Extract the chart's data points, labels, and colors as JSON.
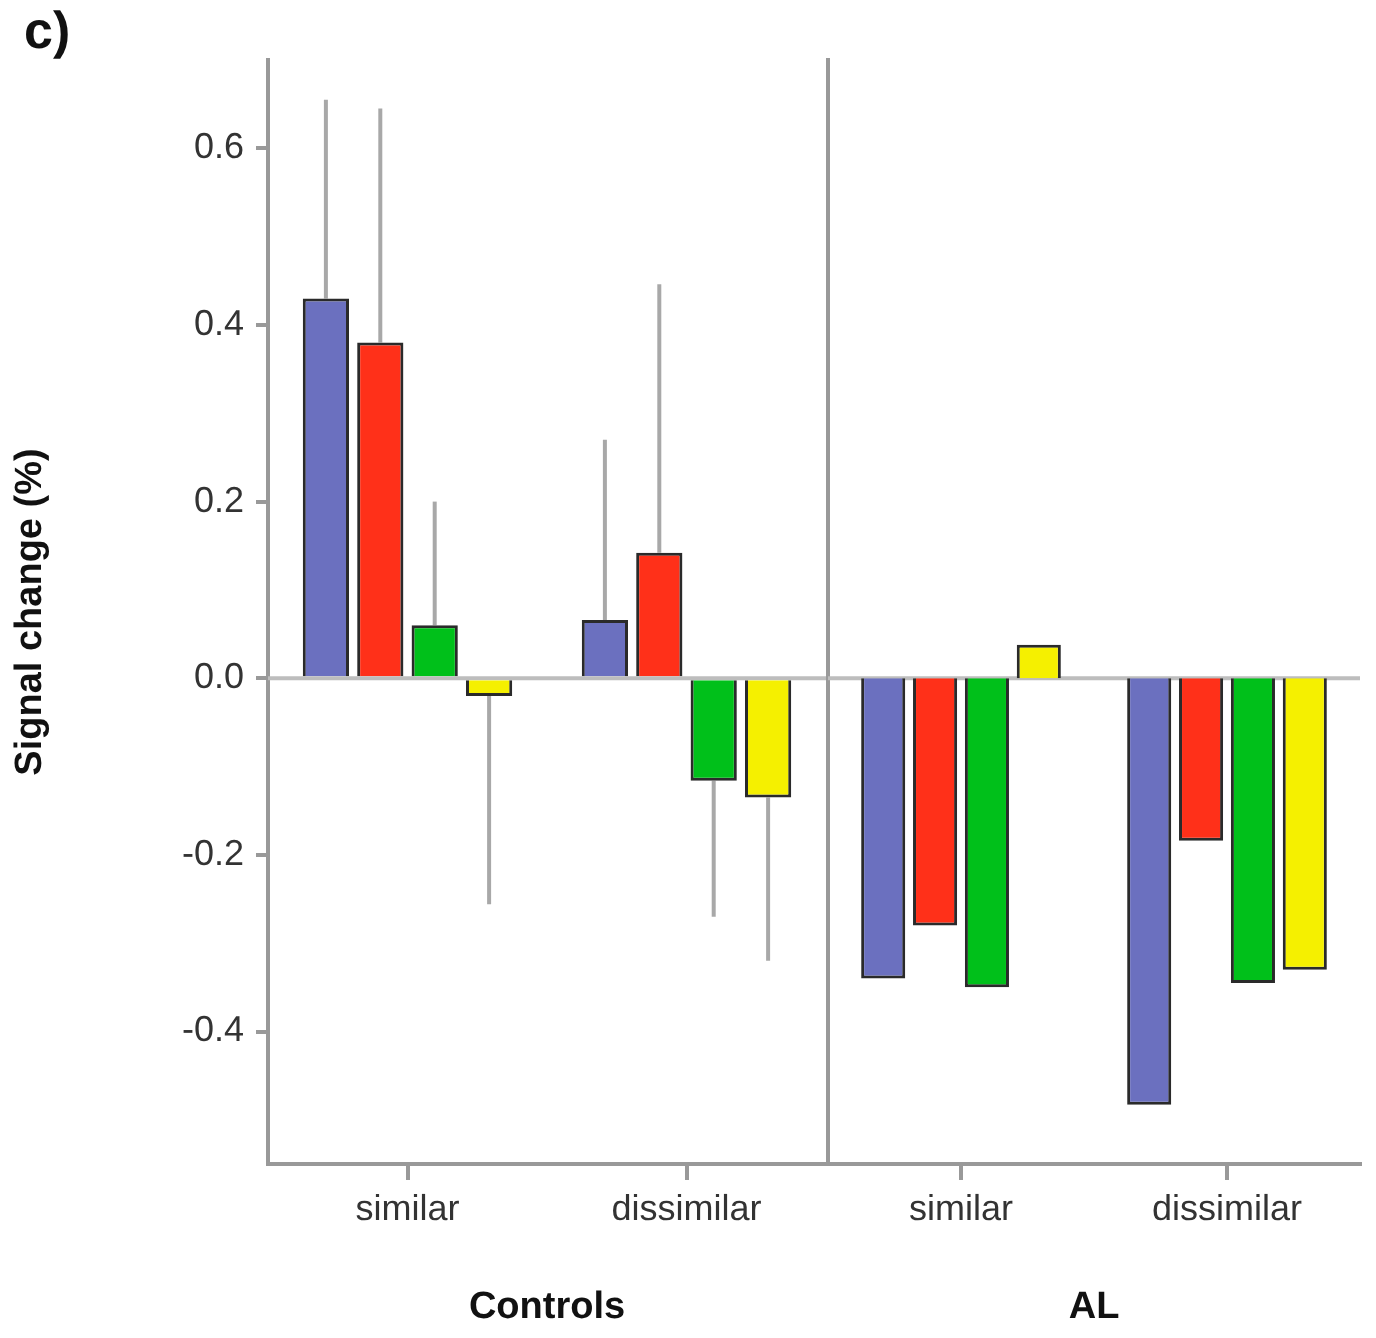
{
  "chart_data": [
    {
      "type": "bar",
      "title": "c)",
      "xlabel": "Controls",
      "ylabel": "Signal change (%)",
      "categories": [
        "similar",
        "dissimilar"
      ],
      "series": [
        {
          "color": "#6b70bf",
          "values": [
            0.43,
            0.066
          ],
          "errors": [
            [
              0.43,
              0.655
            ],
            [
              0.066,
              0.27
            ]
          ]
        },
        {
          "color": "#ff3019",
          "values": [
            0.38,
            0.142
          ],
          "errors": [
            [
              0.38,
              0.645
            ],
            [
              0.142,
              0.446
            ]
          ]
        },
        {
          "color": "#00c01a",
          "values": [
            0.06,
            -0.116
          ],
          "errors": [
            [
              0.06,
              0.2
            ],
            [
              -0.27,
              -0.116
            ]
          ]
        },
        {
          "color": "#f5f000",
          "values": [
            -0.02,
            -0.135
          ],
          "errors": [
            [
              -0.256,
              -0.02
            ],
            [
              -0.32,
              -0.135
            ]
          ]
        }
      ],
      "ylim": [
        -0.55,
        0.7
      ],
      "yticks": [
        {
          "value": -0.4,
          "label": "-0.4"
        },
        {
          "value": -0.2,
          "label": "-0.2"
        },
        {
          "value": 0,
          "label": "0.0"
        },
        {
          "value": 0.2,
          "label": "0.2"
        },
        {
          "value": 0.4,
          "label": "0.4"
        },
        {
          "value": 0.6,
          "label": "0.6"
        }
      ],
      "ref_lines": [
        {
          "axis": "y",
          "value": 0
        }
      ],
      "grid": false,
      "legend": false
    },
    {
      "type": "bar",
      "xlabel": "AL",
      "categories": [
        "similar",
        "dissimilar"
      ],
      "series": [
        {
          "color": "#6b70bf",
          "values": [
            -0.34,
            -0.483
          ]
        },
        {
          "color": "#ff3019",
          "values": [
            -0.28,
            -0.184
          ]
        },
        {
          "color": "#00c01a",
          "values": [
            -0.35,
            -0.345
          ]
        },
        {
          "color": "#f5f000",
          "values": [
            0.038,
            -0.33
          ]
        }
      ],
      "ylim": [
        -0.55,
        0.7
      ],
      "ref_lines": [
        {
          "axis": "y",
          "value": 0
        }
      ],
      "grid": false,
      "legend": false,
      "tick_labels": "x"
    }
  ]
}
